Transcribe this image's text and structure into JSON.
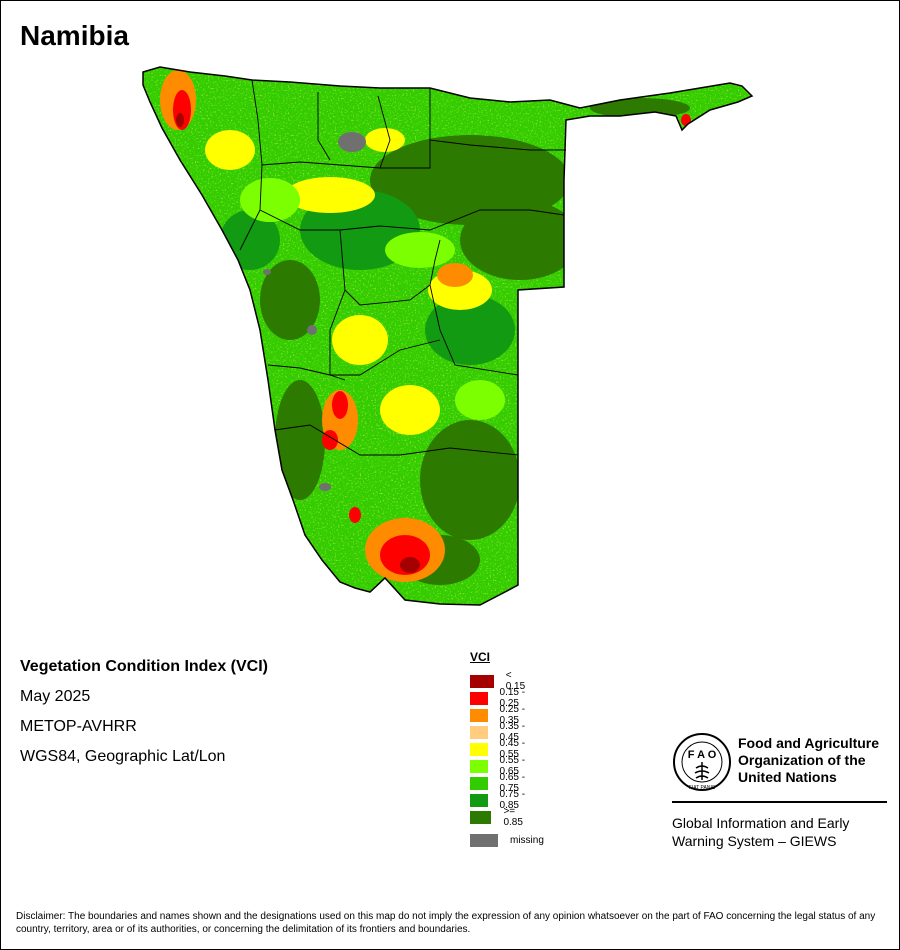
{
  "map": {
    "title": "Namibia",
    "colors": {
      "lt015": "#a50000",
      "r015_025": "#ff0000",
      "r025_035": "#ff8c00",
      "r035_045": "#ffcc80",
      "r045_055": "#ffff00",
      "r055_065": "#7cff00",
      "r065_075": "#33cc00",
      "r075_085": "#139a13",
      "ge085": "#2d7a00",
      "missing": "#707070"
    }
  },
  "info": {
    "index_name": "Vegetation Condition Index (VCI)",
    "period": "May 2025",
    "sensor": "METOP-AVHRR",
    "projection": "WGS84, Geographic Lat/Lon"
  },
  "legend": {
    "title": "VCI",
    "items": [
      {
        "label": "< 0.15",
        "color": "#a50000"
      },
      {
        "label": "0.15 - 0.25",
        "color": "#ff0000"
      },
      {
        "label": "0.25 - 0.35",
        "color": "#ff8c00"
      },
      {
        "label": "0.35 - 0.45",
        "color": "#ffcc80"
      },
      {
        "label": "0.45 - 0.55",
        "color": "#ffff00"
      },
      {
        "label": "0.55 - 0.65",
        "color": "#7cff00"
      },
      {
        "label": "0.65 - 0.75",
        "color": "#33cc00"
      },
      {
        "label": "0.75 - 0.85",
        "color": "#139a13"
      },
      {
        "label": ">= 0.85",
        "color": "#2d7a00"
      }
    ],
    "missing": {
      "label": "missing",
      "color": "#707070"
    }
  },
  "fao": {
    "name_line1": "Food and Agriculture",
    "name_line2": "Organization of the",
    "name_line3": "United Nations",
    "logo_letters": "F A O",
    "logo_motto": "FIAT PANIS",
    "giews_line1": "Global Information and Early",
    "giews_line2": "Warning System – GIEWS"
  },
  "disclaimer": "Disclaimer: The boundaries and names shown and the designations used on this map do not imply the expression of any opinion whatsoever on the part of FAO concerning the legal status of any country, territory, area or of its authorities, or concerning the delimitation of its frontiers and boundaries."
}
